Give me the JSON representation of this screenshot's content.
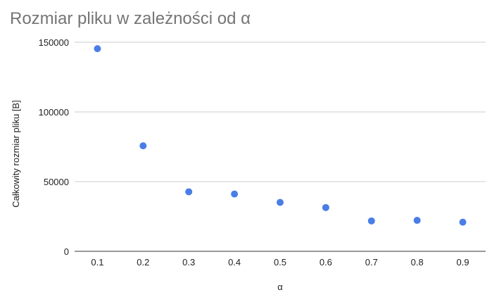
{
  "chart_data": {
    "type": "scatter",
    "title": "Rozmiar pliku w zależności od α",
    "xlabel": "α",
    "ylabel": "Całkowity rozmiar pliku [B]",
    "x_ticks": [
      "0.1",
      "0.2",
      "0.3",
      "0.4",
      "0.5",
      "0.6",
      "0.7",
      "0.8",
      "0.9"
    ],
    "y_ticks": [
      "0",
      "50000",
      "100000",
      "150000"
    ],
    "ylim": [
      0,
      150000
    ],
    "xlim": [
      0.05,
      0.95
    ],
    "grid": true,
    "legend": "none",
    "point_color": "#4a7ee6",
    "series": [
      {
        "x": [
          0.1,
          0.2,
          0.3,
          0.4,
          0.5,
          0.6,
          0.7,
          0.8,
          0.9
        ],
        "y": [
          145400,
          75700,
          42700,
          41100,
          35100,
          31400,
          21800,
          22200,
          20900
        ]
      }
    ]
  }
}
